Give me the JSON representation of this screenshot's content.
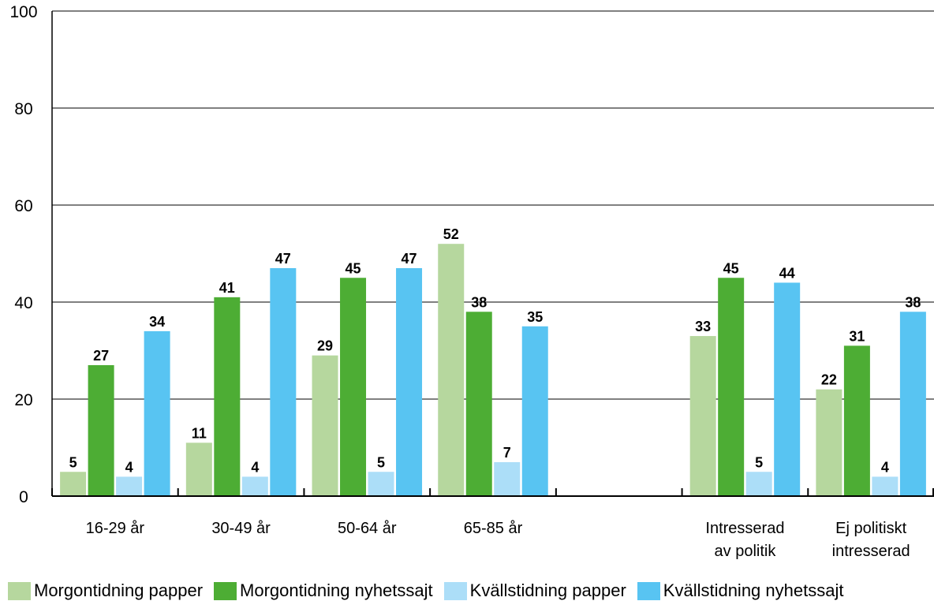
{
  "chart_data": {
    "type": "bar",
    "categories": [
      "16-29 år",
      "30-49 år",
      "50-64 år",
      "65-85 år",
      "",
      "Intresserad|av politik",
      "Ej politiskt|intresserad"
    ],
    "series": [
      {
        "name": "Morgontidning papper",
        "color": "#b6d79e",
        "values": [
          5,
          11,
          29,
          52,
          null,
          33,
          22
        ]
      },
      {
        "name": "Morgontidning nyhetssajt",
        "color": "#4dad34",
        "values": [
          27,
          41,
          45,
          38,
          null,
          45,
          31
        ]
      },
      {
        "name": "Kvällstidning papper",
        "color": "#acdef8",
        "values": [
          4,
          4,
          5,
          7,
          null,
          5,
          4
        ]
      },
      {
        "name": "Kvällstidning nyhetssajt",
        "color": "#58c4f2",
        "values": [
          34,
          47,
          47,
          35,
          null,
          44,
          38
        ]
      }
    ],
    "ylim": [
      0,
      100
    ],
    "yticks": [
      0,
      20,
      40,
      60,
      80,
      100
    ],
    "grid": true,
    "legend_position": "bottom",
    "show_values": true
  }
}
